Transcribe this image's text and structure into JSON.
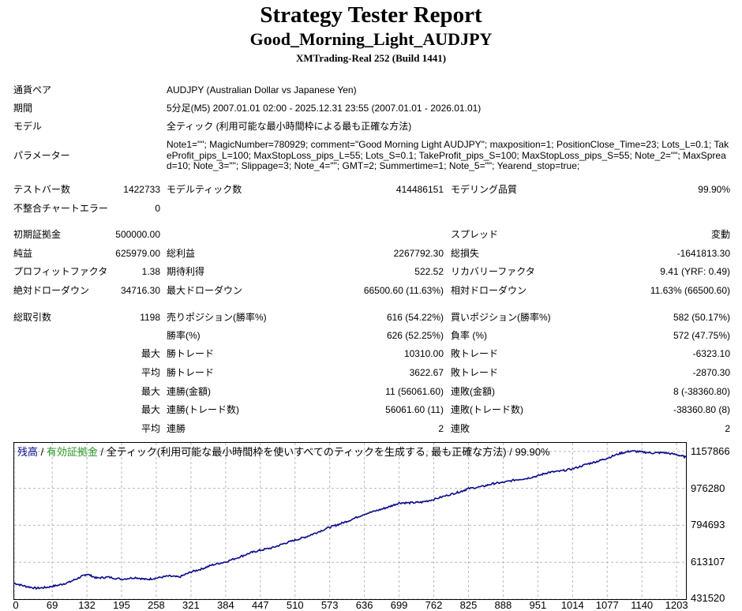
{
  "header": {
    "title": "Strategy Tester Report",
    "subtitle": "Good_Morning_Light_AUDJPY",
    "build": "XMTrading-Real 252 (Build 1441)"
  },
  "info": {
    "symbol_label": "通貨ペア",
    "symbol_value": "AUDJPY (Australian Dollar vs Japanese Yen)",
    "period_label": "期間",
    "period_value": "5分足(M5) 2007.01.01 02:00 - 2025.12.31 23:55 (2007.01.01 - 2026.01.01)",
    "model_label": "モデル",
    "model_value": "全ティック (利用可能な最小時間枠による最も正確な方法)",
    "params_label": "パラメーター",
    "params_value": "Note1=\"\"; MagicNumber=780929; comment=\"Good Morning Light AUDJPY\"; maxposition=1; PositionClose_Time=23; Lots_L=0.1; TakeProfit_pips_L=100; MaxStopLoss_pips_L=55; Lots_S=0.1; TakeProfit_pips_S=100; MaxStopLoss_pips_S=55; Note_2=\"\"; MaxSpread=10; Note_3=\"\"; Slippage=3; Note_4=\"\"; GMT=2; Summertime=1; Note_5=\"\"; Yearend_stop=true;"
  },
  "stats": {
    "bars_label": "テストバー数",
    "bars_value": "1422733",
    "ticks_label": "モデルティック数",
    "ticks_value": "414486151",
    "quality_label": "モデリング品質",
    "quality_value": "99.90%",
    "mismatch_label": "不整合チャートエラー",
    "mismatch_value": "0",
    "deposit_label": "初期証拠金",
    "deposit_value": "500000.00",
    "spread_label": "スプレッド",
    "spread_value": "変動",
    "net_label": "純益",
    "net_value": "625979.00",
    "gross_profit_label": "総利益",
    "gross_profit_value": "2267792.30",
    "gross_loss_label": "総損失",
    "gross_loss_value": "-1641813.30",
    "pf_label": "プロフィットファクタ",
    "pf_value": "1.38",
    "expected_label": "期待利得",
    "expected_value": "522.52",
    "recovery_label": "リカバリーファクタ",
    "recovery_value": "9.41 (YRF: 0.49)",
    "abs_dd_label": "絶対ドローダウン",
    "abs_dd_value": "34716.30",
    "max_dd_label": "最大ドローダウン",
    "max_dd_value": "66500.60 (11.63%)",
    "rel_dd_label": "相対ドローダウン",
    "rel_dd_value": "11.63% (66500.60)",
    "trades_label": "総取引数",
    "trades_value": "1198",
    "short_label": "売りポジション(勝率%)",
    "short_value": "616 (54.22%)",
    "long_label": "買いポジション(勝率%)",
    "long_value": "582 (50.17%)",
    "winrate_label": "勝率(%)",
    "winrate_value": "626 (52.25%)",
    "lossrate_label": "負率 (%)",
    "lossrate_value": "572 (47.75%)",
    "max_prefix": "最大",
    "avg_prefix": "平均",
    "max_win_label": "勝トレード",
    "max_win_value": "10310.00",
    "max_loss_label": "敗トレード",
    "max_loss_value": "-6323.10",
    "avg_win_label": "勝トレード",
    "avg_win_value": "3622.67",
    "avg_loss_label": "敗トレード",
    "avg_loss_value": "-2870.30",
    "max_consec_wins_amt_label": "連勝(金額)",
    "max_consec_wins_amt_value": "11 (56061.60)",
    "max_consec_losses_amt_label": "連敗(金額)",
    "max_consec_losses_amt_value": "8 (-38360.80)",
    "max_consec_wins_cnt_label": "連勝(トレード数)",
    "max_consec_wins_cnt_value": "56061.60 (11)",
    "max_consec_losses_cnt_label": "連敗(トレード数)",
    "max_consec_losses_cnt_value": "-38360.80 (8)",
    "avg_consec_wins_label": "連勝",
    "avg_consec_wins_value": "2",
    "avg_consec_losses_label": "連敗",
    "avg_consec_losses_value": "2"
  },
  "chart_data": {
    "type": "line",
    "legend": {
      "balance": "残高",
      "sep1": " / ",
      "equity": "有効証拠金",
      "rest": " / 全ティック(利用可能な最小時間枠を使いすべてのティックを生成する, 最も正確な方法) / 99.90%"
    },
    "colors": {
      "balance": "#0a0a8a",
      "equity": "#2a9a2a"
    },
    "ylim": [
      431520,
      1200000
    ],
    "xlim": [
      0,
      1220
    ],
    "yticks": [
      {
        "value": 1157866,
        "label": "1157866"
      },
      {
        "value": 976280,
        "label": "976280"
      },
      {
        "value": 794693,
        "label": "794693"
      },
      {
        "value": 613107,
        "label": "613107"
      },
      {
        "value": 431520,
        "label": "431520"
      }
    ],
    "xticks": [
      0,
      69,
      132,
      195,
      258,
      321,
      384,
      447,
      510,
      573,
      636,
      699,
      762,
      825,
      888,
      951,
      1014,
      1077,
      1140,
      1203
    ],
    "grid": true,
    "series": [
      {
        "x": [
          0,
          20,
          40,
          60,
          80,
          100,
          120,
          132,
          150,
          170,
          195,
          220,
          240,
          258,
          280,
          300,
          321,
          340,
          360,
          384,
          410,
          430,
          447,
          470,
          490,
          510,
          530,
          550,
          573,
          590,
          610,
          636,
          660,
          680,
          699,
          720,
          740,
          762,
          790,
          810,
          825,
          850,
          870,
          888,
          910,
          930,
          951,
          970,
          990,
          1014,
          1040,
          1060,
          1077,
          1100,
          1120,
          1140,
          1160,
          1180,
          1203,
          1220
        ],
        "y": [
          510000,
          495000,
          485000,
          490000,
          500000,
          515000,
          540000,
          555000,
          535000,
          540000,
          530000,
          538000,
          528000,
          535000,
          545000,
          540000,
          565000,
          580000,
          600000,
          615000,
          640000,
          660000,
          672000,
          685000,
          705000,
          722000,
          738000,
          760000,
          785000,
          800000,
          820000,
          850000,
          868000,
          885000,
          905000,
          905000,
          908000,
          922000,
          945000,
          960000,
          975000,
          985000,
          1000000,
          1005000,
          1018000,
          1025000,
          1038000,
          1055000,
          1060000,
          1072000,
          1095000,
          1110000,
          1125000,
          1148000,
          1160000,
          1155000,
          1150000,
          1152000,
          1142000,
          1130000
        ]
      }
    ]
  }
}
